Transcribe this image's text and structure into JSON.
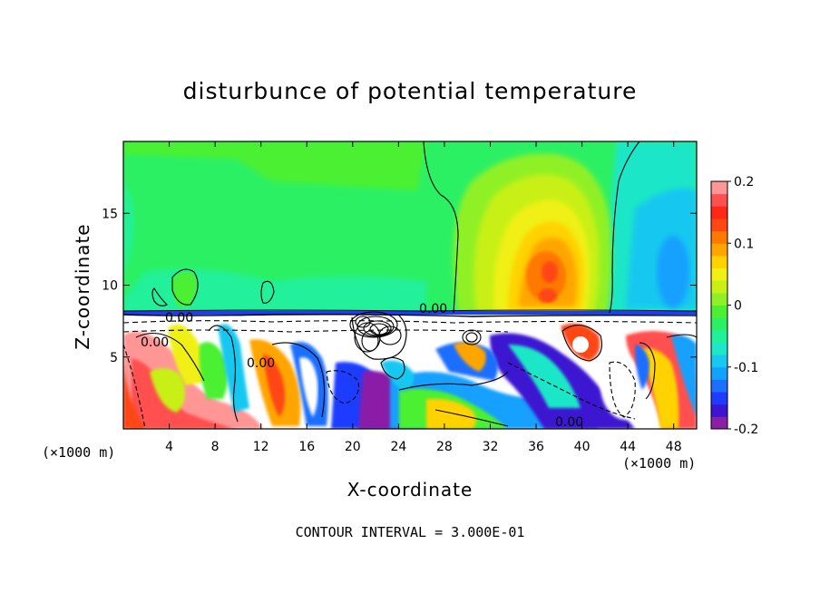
{
  "chart_data": {
    "type": "heatmap",
    "title": "disturbunce of potential temperature",
    "xlabel": "X-coordinate",
    "ylabel": "Z-coordinate",
    "x_unit_label": "(×1000 m)",
    "x_unit_label_right": "(×1000 m)",
    "x_ticks": [
      4,
      8,
      12,
      16,
      20,
      24,
      28,
      32,
      36,
      40,
      44,
      48
    ],
    "y_ticks": [
      5,
      10,
      15
    ],
    "xlim": [
      0,
      50
    ],
    "ylim": [
      0,
      20
    ],
    "colorbar": {
      "range": [
        -0.2,
        0.2
      ],
      "tick_labels": [
        "0.2",
        "0.1",
        "0",
        "-0.1",
        "-0.2"
      ],
      "tick_values": [
        0.2,
        0.1,
        0,
        -0.1,
        -0.2
      ],
      "colors": [
        "#8a1fa8",
        "#3c14d2",
        "#1e3cff",
        "#1e6eff",
        "#14a0ff",
        "#18c8f0",
        "#1ee6c8",
        "#20f09a",
        "#2cf064",
        "#4cf032",
        "#90f028",
        "#c8f014",
        "#f0f014",
        "#ffd200",
        "#ffa500",
        "#ff7800",
        "#ff4614",
        "#ff2814",
        "#ff5050",
        "#ff9696"
      ]
    },
    "contour_labels": [
      "0.00",
      "0.00",
      "0.00",
      "0.00",
      "0.00"
    ],
    "contour_interval_text": "CONTOUR INTERVAL = 3.000E-01"
  }
}
